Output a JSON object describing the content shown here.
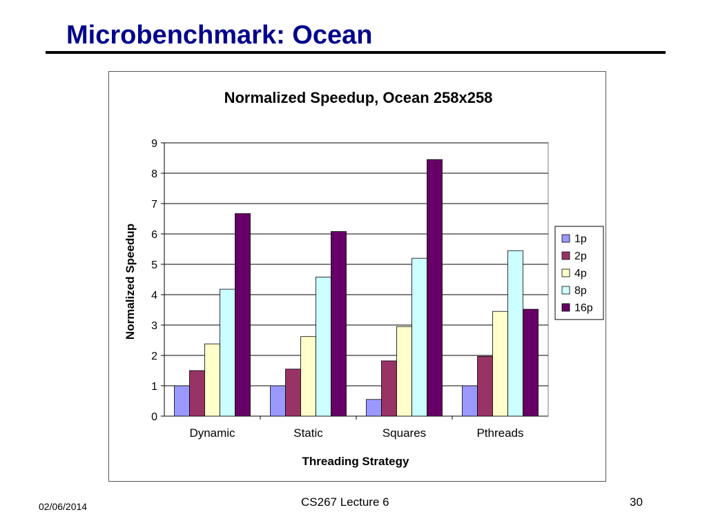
{
  "slide": {
    "title": "Microbenchmark: Ocean",
    "footer_date": "02/06/2014",
    "footer_center": "CS267 Lecture 6",
    "page_number": "30"
  },
  "chart_data": {
    "type": "bar",
    "title": "Normalized Speedup, Ocean 258x258",
    "xlabel": "Threading Strategy",
    "ylabel": "Normalized Speedup",
    "ylim": [
      0,
      9
    ],
    "yticks": [
      "0",
      "1",
      "2",
      "3",
      "4",
      "5",
      "6",
      "7",
      "8",
      "9"
    ],
    "grid": true,
    "legend_position": "right",
    "categories": [
      "Dynamic",
      "Static",
      "Squares",
      "Pthreads"
    ],
    "series": [
      {
        "name": "1p",
        "color": "#9999ff",
        "values": [
          1.0,
          1.0,
          0.55,
          1.0
        ]
      },
      {
        "name": "2p",
        "color": "#993366",
        "values": [
          1.5,
          1.55,
          1.82,
          1.97
        ]
      },
      {
        "name": "4p",
        "color": "#ffffcc",
        "values": [
          2.38,
          2.62,
          2.95,
          3.45
        ]
      },
      {
        "name": "8p",
        "color": "#ccffff",
        "values": [
          4.18,
          4.58,
          5.2,
          5.45
        ]
      },
      {
        "name": "16p",
        "color": "#660066",
        "values": [
          6.67,
          6.08,
          8.45,
          3.52
        ]
      }
    ]
  }
}
